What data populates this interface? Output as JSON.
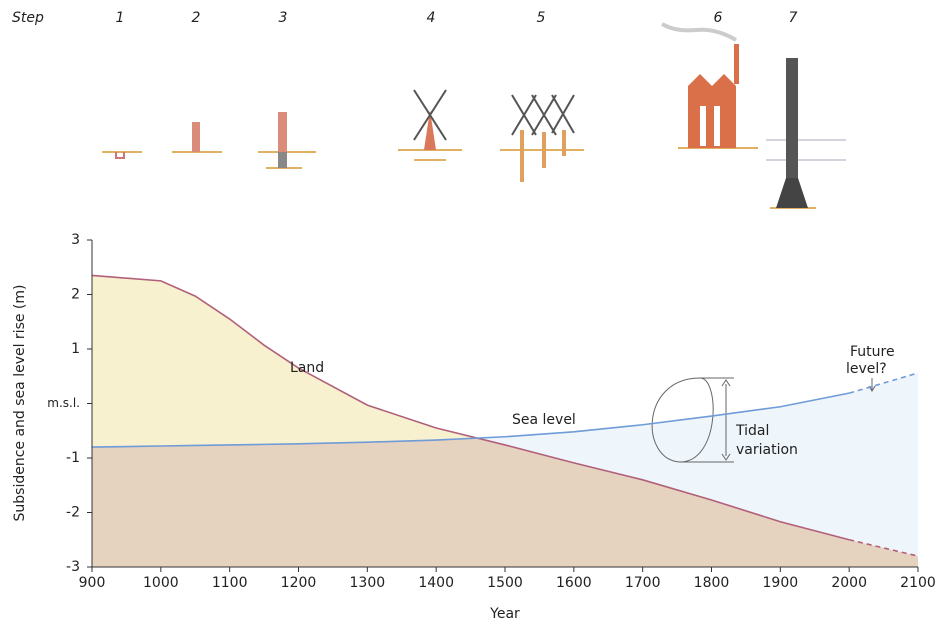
{
  "chart_data": {
    "type": "area",
    "steps_label": "Step",
    "steps": [
      1,
      2,
      3,
      4,
      5,
      6,
      7
    ],
    "x_label": "Year",
    "y_label": "Subsidence and sea level rise (m)",
    "x": [
      900,
      1000,
      1050,
      1100,
      1150,
      1200,
      1300,
      1400,
      1500,
      1600,
      1700,
      1800,
      1900,
      2000,
      2100
    ],
    "series": [
      {
        "name": "Land",
        "color": "#b2607a",
        "fill": "#f8f1cf",
        "values": [
          2.35,
          2.25,
          1.97,
          1.55,
          1.07,
          0.65,
          -0.03,
          -0.45,
          -0.76,
          -1.09,
          -1.4,
          -1.77,
          -2.17,
          -2.5,
          -2.8
        ]
      },
      {
        "name": "Sea level",
        "color": "#6f9bd8",
        "fill": "#eef5fb",
        "values": [
          -0.8,
          -0.78,
          -0.77,
          -0.76,
          -0.75,
          -0.74,
          -0.71,
          -0.67,
          -0.61,
          -0.52,
          -0.39,
          -0.23,
          -0.06,
          0.19,
          0.56
        ]
      }
    ],
    "below_fill": "#e5d2bf",
    "projected_from": 2000,
    "annotations": [
      {
        "lines": [
          "Tidal",
          "variation"
        ]
      },
      {
        "lines": [
          "Future",
          "level?"
        ]
      }
    ],
    "xlim": [
      900,
      2100
    ],
    "xticks": [
      900,
      1000,
      1100,
      1200,
      1300,
      1400,
      1500,
      1600,
      1700,
      1800,
      1900,
      2000,
      2100
    ],
    "ylim": [
      -3,
      3
    ],
    "yticks": [
      -3,
      -2,
      -1,
      {
        "value": 0,
        "label": "m.s.l."
      },
      1,
      2,
      3
    ]
  }
}
